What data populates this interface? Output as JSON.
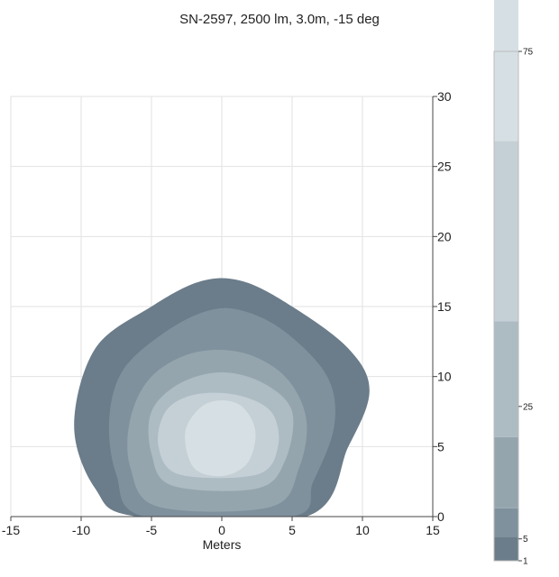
{
  "chart_data": {
    "type": "contour",
    "title": "SN-2597, 2500 lm, 3.0m, -15 deg",
    "xlabel": "Meters",
    "ylabel": "",
    "xlim": [
      -15,
      15
    ],
    "ylim": [
      0,
      30
    ],
    "x_ticks": [
      -15,
      -10,
      -5,
      0,
      5,
      10,
      15
    ],
    "y_ticks": [
      0,
      5,
      10,
      15,
      20,
      25,
      30
    ],
    "grid": true,
    "colors": {
      "level1": "#6b7c8a",
      "level2": "#7f919d",
      "level3": "#95a5ae",
      "level4": "#adbbc3",
      "level5": "#c5d0d6",
      "level6": "#d6e0e4"
    },
    "contours": [
      {
        "level": 1,
        "color_key": "level1",
        "points": [
          [
            -9,
            2
          ],
          [
            -10.5,
            6.5
          ],
          [
            -9,
            12
          ],
          [
            -5,
            15
          ],
          [
            -1.5,
            16.8
          ],
          [
            1.5,
            16.8
          ],
          [
            5,
            15
          ],
          [
            9,
            12
          ],
          [
            10.5,
            9
          ],
          [
            9,
            5
          ],
          [
            6,
            0
          ],
          [
            -6,
            0
          ]
        ]
      },
      {
        "level": 2,
        "color_key": "level2",
        "points": [
          [
            -5.5,
            0
          ],
          [
            -7.5,
            3
          ],
          [
            -8,
            7
          ],
          [
            -7,
            10.5
          ],
          [
            -4,
            13.2
          ],
          [
            -1,
            14.7
          ],
          [
            1.5,
            14.7
          ],
          [
            4.5,
            13.2
          ],
          [
            7.5,
            10
          ],
          [
            8,
            6.5
          ],
          [
            6.5,
            2.5
          ],
          [
            5,
            0
          ]
        ]
      },
      {
        "level": 3,
        "color_key": "level3",
        "points": [
          [
            -4.5,
            0.7
          ],
          [
            -6.5,
            3.5
          ],
          [
            -6.5,
            7
          ],
          [
            -5,
            10
          ],
          [
            -2,
            11.7
          ],
          [
            1.5,
            11.7
          ],
          [
            4.5,
            10
          ],
          [
            6,
            7
          ],
          [
            5.5,
            3.5
          ],
          [
            3.5,
            0.7
          ]
        ]
      },
      {
        "level": 4,
        "color_key": "level4",
        "points": [
          [
            -3.5,
            2.2
          ],
          [
            -5,
            4.5
          ],
          [
            -5,
            7.5
          ],
          [
            -3,
            9.5
          ],
          [
            0,
            10.3
          ],
          [
            3,
            9.5
          ],
          [
            5,
            7.5
          ],
          [
            4.5,
            4
          ],
          [
            2.5,
            2
          ]
        ]
      },
      {
        "level": 5,
        "color_key": "level5",
        "points": [
          [
            -3,
            3
          ],
          [
            -4.5,
            5
          ],
          [
            -4,
            7.5
          ],
          [
            -2,
            8.7
          ],
          [
            1,
            8.7
          ],
          [
            3.5,
            7.5
          ],
          [
            4,
            5
          ],
          [
            2.5,
            3
          ]
        ]
      },
      {
        "level": 6,
        "color_key": "level6",
        "points": [
          [
            -2,
            3.5
          ],
          [
            -2.6,
            6
          ],
          [
            -1.5,
            7.8
          ],
          [
            0,
            8.3
          ],
          [
            1.5,
            7.8
          ],
          [
            2.4,
            6
          ],
          [
            1.8,
            3.8
          ],
          [
            0,
            2.9
          ]
        ]
      }
    ],
    "colorbar": {
      "ticks": [
        "75",
        "25",
        "5",
        "1"
      ],
      "bands": [
        {
          "from": "1",
          "to": "",
          "color_key": "level1",
          "frac": 0.046
        },
        {
          "from": "",
          "to": "5",
          "color_key": "level2",
          "frac": 0.057
        },
        {
          "from": "5",
          "to": "",
          "color_key": "level3",
          "frac": 0.14
        },
        {
          "from": "",
          "to": "25",
          "color_key": "level4",
          "frac": 0.227
        },
        {
          "from": "25",
          "to": "",
          "color_key": "level5",
          "frac": 0.354
        },
        {
          "from": "",
          "to": "75",
          "color_key": "level6",
          "frac": 0.328
        }
      ],
      "tick_fracs": [
        1.0,
        0.303,
        0.043,
        0.0
      ]
    }
  }
}
